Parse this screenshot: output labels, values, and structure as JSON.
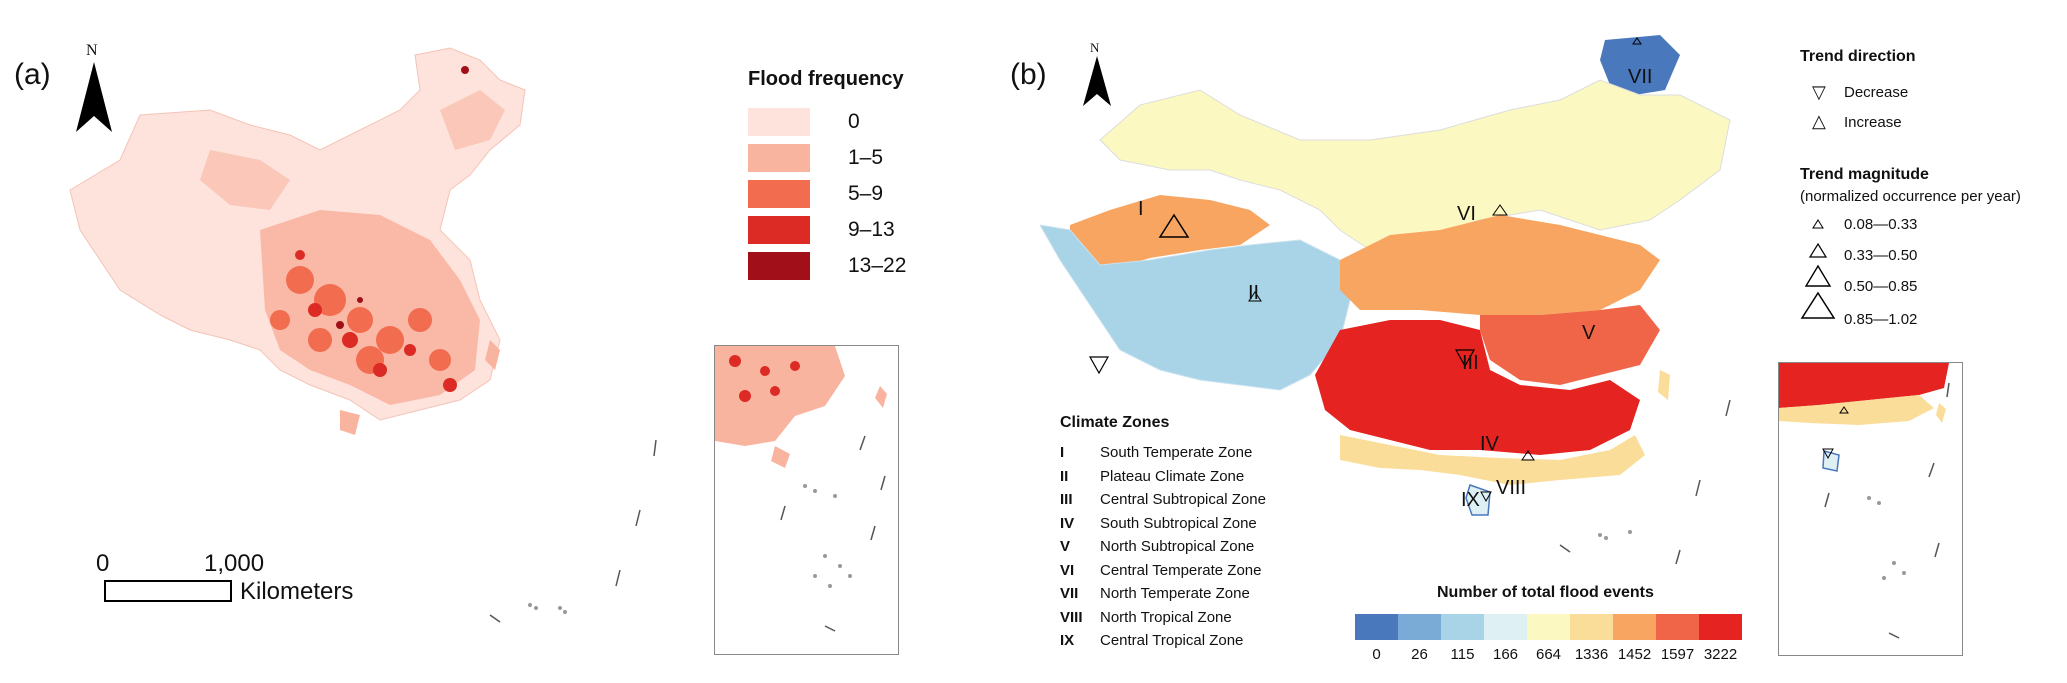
{
  "panel_a": {
    "label": "(a)",
    "north": "N",
    "legend": {
      "title": "Flood frequency",
      "classes": [
        {
          "label": "0",
          "color": "#fde3dc"
        },
        {
          "label": "1–5",
          "color": "#f9b4a0"
        },
        {
          "label": "5–9",
          "color": "#f26c50"
        },
        {
          "label": "9–13",
          "color": "#db2b24"
        },
        {
          "label": "13–22",
          "color": "#a10f18"
        }
      ]
    },
    "scale": {
      "start": "0",
      "end": "1,000",
      "unit": "Kilometers"
    }
  },
  "panel_b": {
    "label": "(b)",
    "north": "N",
    "zone_labels": {
      "I": "I",
      "II": "II",
      "III": "III",
      "IV": "IV",
      "V": "V",
      "VI": "VI",
      "VII": "VII",
      "VIII": "VIII",
      "IX": "IX"
    },
    "climate_zones": {
      "title": "Climate Zones",
      "items": [
        {
          "roman": "I",
          "name": "South Temperate Zone"
        },
        {
          "roman": "II",
          "name": "Plateau Climate Zone"
        },
        {
          "roman": "III",
          "name": "Central Subtropical Zone"
        },
        {
          "roman": "IV",
          "name": "South Subtropical Zone"
        },
        {
          "roman": "V",
          "name": "North Subtropical Zone"
        },
        {
          "roman": "VI",
          "name": "Central Temperate Zone"
        },
        {
          "roman": "VII",
          "name": "North Temperate Zone"
        },
        {
          "roman": "VIII",
          "name": "North Tropical Zone"
        },
        {
          "roman": "IX",
          "name": "Central Tropical Zone"
        }
      ]
    },
    "trend_direction": {
      "title": "Trend direction",
      "items": [
        {
          "symbol": "▽",
          "label": "Decrease"
        },
        {
          "symbol": "△",
          "label": "Increase"
        }
      ]
    },
    "trend_magnitude": {
      "title": "Trend magnitude",
      "subtitle": "(normalized occurrence per year)",
      "items": [
        "0.08—0.33",
        "0.33—0.50",
        "0.50—0.85",
        "0.85—1.02"
      ]
    },
    "colorbar": {
      "title": "Number of total flood events",
      "ticks": [
        "0",
        "26",
        "115",
        "166",
        "664",
        "1336",
        "1452",
        "1597",
        "3222"
      ],
      "colors": [
        "#4a78bd",
        "#7aaad6",
        "#a9d3e6",
        "#dff0f5",
        "#fbf8c2",
        "#fbdd9a",
        "#f7a561",
        "#f06547",
        "#e52320"
      ]
    }
  }
}
